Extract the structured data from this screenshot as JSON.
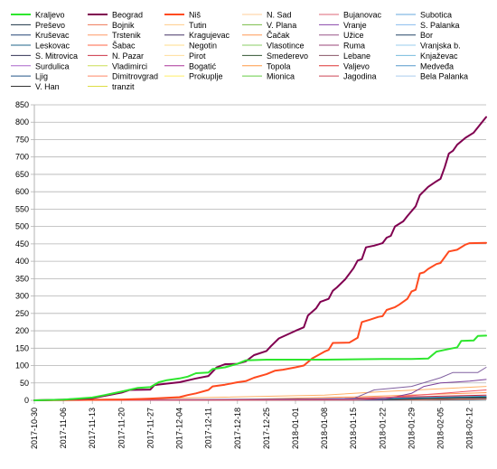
{
  "chart_data": {
    "type": "line",
    "title": "",
    "xlabel": "",
    "ylabel": "",
    "ylim": [
      0,
      850
    ],
    "yticks": [
      0,
      50,
      100,
      150,
      200,
      250,
      300,
      350,
      400,
      450,
      500,
      550,
      600,
      650,
      700,
      750,
      800,
      850
    ],
    "x_ticks": [
      "2017-10-30",
      "2017-11-06",
      "2017-11-13",
      "2017-11-20",
      "2017-11-27",
      "2017-12-04",
      "2017-12-11",
      "2017-12-18",
      "2017-12-25",
      "2018-01-01",
      "2018-01-08",
      "2018-01-15",
      "2018-01-22",
      "2018-01-29",
      "2018-02-05",
      "2018-02-12"
    ],
    "x_start": "2017-10-30",
    "x_end": "2018-02-16",
    "grid": true,
    "legend": "top",
    "series": [
      {
        "name": "Kraljevo",
        "color": "#2ee62e",
        "points": [
          [
            "2017-10-30",
            0
          ],
          [
            "2017-11-06",
            2
          ],
          [
            "2017-11-13",
            8
          ],
          [
            "2017-11-16",
            15
          ],
          [
            "2017-11-20",
            25
          ],
          [
            "2017-11-24",
            36
          ],
          [
            "2017-11-27",
            38
          ],
          [
            "2017-11-29",
            52
          ],
          [
            "2017-12-01",
            58
          ],
          [
            "2017-12-04",
            63
          ],
          [
            "2017-12-06",
            68
          ],
          [
            "2017-12-08",
            78
          ],
          [
            "2017-12-11",
            80
          ],
          [
            "2017-12-12",
            90
          ],
          [
            "2017-12-15",
            95
          ],
          [
            "2017-12-18",
            105
          ],
          [
            "2017-12-20",
            115
          ],
          [
            "2017-12-25",
            117
          ],
          [
            "2018-01-08",
            117
          ],
          [
            "2018-01-15",
            118
          ],
          [
            "2018-01-22",
            119
          ],
          [
            "2018-01-29",
            119
          ],
          [
            "2018-02-02",
            120
          ],
          [
            "2018-02-04",
            140
          ],
          [
            "2018-02-06",
            145
          ],
          [
            "2018-02-08",
            150
          ],
          [
            "2018-02-09",
            152
          ],
          [
            "2018-02-10",
            171
          ],
          [
            "2018-02-13",
            172
          ],
          [
            "2018-02-14",
            185
          ],
          [
            "2018-02-16",
            186
          ]
        ]
      },
      {
        "name": "Beograd",
        "color": "#800050",
        "points": [
          [
            "2017-10-30",
            0
          ],
          [
            "2017-11-06",
            2
          ],
          [
            "2017-11-13",
            6
          ],
          [
            "2017-11-20",
            22
          ],
          [
            "2017-11-22",
            30
          ],
          [
            "2017-11-27",
            31
          ],
          [
            "2017-11-28",
            44
          ],
          [
            "2017-12-01",
            48
          ],
          [
            "2017-12-04",
            52
          ],
          [
            "2017-12-08",
            63
          ],
          [
            "2017-12-11",
            70
          ],
          [
            "2017-12-13",
            95
          ],
          [
            "2017-12-15",
            104
          ],
          [
            "2017-12-18",
            105
          ],
          [
            "2017-12-20",
            112
          ],
          [
            "2017-12-22",
            130
          ],
          [
            "2017-12-25",
            142
          ],
          [
            "2017-12-26",
            155
          ],
          [
            "2017-12-28",
            178
          ],
          [
            "2018-01-01",
            200
          ],
          [
            "2018-01-03",
            210
          ],
          [
            "2018-01-04",
            244
          ],
          [
            "2018-01-06",
            265
          ],
          [
            "2018-01-07",
            283
          ],
          [
            "2018-01-09",
            292
          ],
          [
            "2018-01-10",
            315
          ],
          [
            "2018-01-11",
            325
          ],
          [
            "2018-01-13",
            348
          ],
          [
            "2018-01-15",
            380
          ],
          [
            "2018-01-16",
            402
          ],
          [
            "2018-01-17",
            406
          ],
          [
            "2018-01-18",
            440
          ],
          [
            "2018-01-20",
            445
          ],
          [
            "2018-01-22",
            452
          ],
          [
            "2018-01-23",
            468
          ],
          [
            "2018-01-24",
            473
          ],
          [
            "2018-01-25",
            500
          ],
          [
            "2018-01-27",
            515
          ],
          [
            "2018-01-28",
            530
          ],
          [
            "2018-01-30",
            558
          ],
          [
            "2018-01-31",
            590
          ],
          [
            "2018-02-02",
            614
          ],
          [
            "2018-02-04",
            630
          ],
          [
            "2018-02-05",
            637
          ],
          [
            "2018-02-06",
            670
          ],
          [
            "2018-02-07",
            710
          ],
          [
            "2018-02-08",
            718
          ],
          [
            "2018-02-09",
            735
          ],
          [
            "2018-02-11",
            755
          ],
          [
            "2018-02-13",
            770
          ],
          [
            "2018-02-15",
            800
          ],
          [
            "2018-02-16",
            815
          ]
        ]
      },
      {
        "name": "Niš",
        "color": "#ff4a1f",
        "points": [
          [
            "2017-10-30",
            0
          ],
          [
            "2017-11-20",
            2
          ],
          [
            "2017-11-27",
            5
          ],
          [
            "2017-12-04",
            9
          ],
          [
            "2017-12-06",
            15
          ],
          [
            "2017-12-08",
            20
          ],
          [
            "2017-12-11",
            30
          ],
          [
            "2017-12-12",
            40
          ],
          [
            "2017-12-15",
            45
          ],
          [
            "2017-12-18",
            52
          ],
          [
            "2017-12-20",
            55
          ],
          [
            "2017-12-22",
            65
          ],
          [
            "2017-12-25",
            75
          ],
          [
            "2017-12-27",
            85
          ],
          [
            "2017-12-29",
            88
          ],
          [
            "2018-01-01",
            95
          ],
          [
            "2018-01-03",
            100
          ],
          [
            "2018-01-05",
            120
          ],
          [
            "2018-01-08",
            140
          ],
          [
            "2018-01-09",
            145
          ],
          [
            "2018-01-10",
            165
          ],
          [
            "2018-01-14",
            166
          ],
          [
            "2018-01-16",
            180
          ],
          [
            "2018-01-17",
            225
          ],
          [
            "2018-01-19",
            232
          ],
          [
            "2018-01-21",
            240
          ],
          [
            "2018-01-22",
            242
          ],
          [
            "2018-01-23",
            260
          ],
          [
            "2018-01-25",
            268
          ],
          [
            "2018-01-26",
            275
          ],
          [
            "2018-01-28",
            292
          ],
          [
            "2018-01-29",
            313
          ],
          [
            "2018-01-30",
            318
          ],
          [
            "2018-01-31",
            365
          ],
          [
            "2018-02-01",
            368
          ],
          [
            "2018-02-02",
            378
          ],
          [
            "2018-02-04",
            392
          ],
          [
            "2018-02-05",
            395
          ],
          [
            "2018-02-07",
            428
          ],
          [
            "2018-02-09",
            433
          ],
          [
            "2018-02-11",
            448
          ],
          [
            "2018-02-12",
            452
          ],
          [
            "2018-02-16",
            453
          ]
        ]
      },
      {
        "name": "Jagodina",
        "color": "#ee5566",
        "points": [
          [
            "2017-10-30",
            0
          ],
          [
            "2018-01-15",
            1
          ],
          [
            "2018-02-16",
            30
          ]
        ]
      },
      {
        "name": "Vranje",
        "color": "#7a3f9a",
        "points": [
          [
            "2017-10-30",
            0
          ],
          [
            "2018-01-22",
            2
          ],
          [
            "2018-01-29",
            20
          ],
          [
            "2018-02-01",
            40
          ],
          [
            "2018-02-05",
            50
          ],
          [
            "2018-02-12",
            55
          ],
          [
            "2018-02-16",
            60
          ]
        ]
      },
      {
        "name": "Užice",
        "color": "#8060a0",
        "points": [
          [
            "2017-10-30",
            0
          ],
          [
            "2018-01-15",
            5
          ],
          [
            "2018-01-20",
            30
          ],
          [
            "2018-01-29",
            40
          ],
          [
            "2018-02-05",
            65
          ],
          [
            "2018-02-08",
            80
          ],
          [
            "2018-02-14",
            80
          ],
          [
            "2018-02-16",
            95
          ]
        ]
      },
      {
        "name": "N. Sad",
        "color": "#ffb066",
        "points": [
          [
            "2017-10-30",
            0
          ],
          [
            "2017-12-11",
            8
          ],
          [
            "2018-01-08",
            15
          ],
          [
            "2018-01-22",
            25
          ],
          [
            "2018-02-16",
            40
          ]
        ]
      },
      {
        "name": "Čačak",
        "color": "#ff9a55",
        "points": [
          [
            "2017-10-30",
            0
          ],
          [
            "2017-12-20",
            3
          ],
          [
            "2018-01-15",
            10
          ],
          [
            "2018-02-16",
            22
          ]
        ]
      },
      {
        "name": "Valjevo",
        "color": "#cc2233",
        "points": [
          [
            "2017-10-30",
            0
          ],
          [
            "2018-01-01",
            2
          ],
          [
            "2018-02-16",
            15
          ]
        ]
      },
      {
        "name": "Subotica",
        "color": "#4499dd",
        "points": [
          [
            "2017-10-30",
            0
          ],
          [
            "2018-01-08",
            2
          ],
          [
            "2018-02-16",
            12
          ]
        ]
      },
      {
        "name": "Smederevo",
        "color": "#224422",
        "points": [
          [
            "2017-10-30",
            0
          ],
          [
            "2018-01-15",
            3
          ],
          [
            "2018-02-16",
            10
          ]
        ]
      },
      {
        "name": "Leskovac",
        "color": "#225577",
        "points": [
          [
            "2017-10-30",
            0
          ],
          [
            "2018-01-22",
            2
          ],
          [
            "2018-02-16",
            8
          ]
        ]
      },
      {
        "name": "Kruševac",
        "color": "#2a4a7a",
        "points": [
          [
            "2017-10-30",
            0
          ],
          [
            "2018-01-22",
            4
          ],
          [
            "2018-02-16",
            7
          ]
        ]
      },
      {
        "name": "Šabac",
        "color": "#ff7744",
        "points": [
          [
            "2017-10-30",
            0
          ],
          [
            "2018-02-01",
            2
          ],
          [
            "2018-02-16",
            5
          ]
        ]
      },
      {
        "name": "S. Mitrovica",
        "color": "#334466",
        "points": [
          [
            "2017-10-30",
            0
          ],
          [
            "2018-02-05",
            1
          ],
          [
            "2018-02-16",
            3
          ]
        ]
      }
    ],
    "legend_entries": [
      {
        "name": "Kraljevo",
        "color": "#2ee62e",
        "width": 2
      },
      {
        "name": "Beograd",
        "color": "#800050",
        "width": 2
      },
      {
        "name": "Niš",
        "color": "#ff4a1f",
        "width": 2
      },
      {
        "name": "N. Sad",
        "color": "#ffcc99",
        "width": 1
      },
      {
        "name": "Bujanovac",
        "color": "#dd6677",
        "width": 1
      },
      {
        "name": "Subotica",
        "color": "#66aadd",
        "width": 1
      },
      {
        "name": "Preševo",
        "color": "#1a3344",
        "width": 1
      },
      {
        "name": "Bojnik",
        "color": "#ee7755",
        "width": 1
      },
      {
        "name": "Tutin",
        "color": "#ffcc88",
        "width": 1
      },
      {
        "name": "V. Plana",
        "color": "#77bb44",
        "width": 1
      },
      {
        "name": "Vranje",
        "color": "#8844aa",
        "width": 1
      },
      {
        "name": "S. Palanka",
        "color": "#88bbee",
        "width": 1
      },
      {
        "name": "Kruševac",
        "color": "#224477",
        "width": 1
      },
      {
        "name": "Trstenik",
        "color": "#ff9966",
        "width": 1
      },
      {
        "name": "Kragujevac",
        "color": "#443366",
        "width": 1
      },
      {
        "name": "Čačak",
        "color": "#ff9955",
        "width": 1
      },
      {
        "name": "Užice",
        "color": "#995588",
        "width": 1
      },
      {
        "name": "Bor",
        "color": "#224466",
        "width": 1
      },
      {
        "name": "Leskovac",
        "color": "#226688",
        "width": 1
      },
      {
        "name": "Šabac",
        "color": "#ff6644",
        "width": 1
      },
      {
        "name": "Negotin",
        "color": "#ffdd88",
        "width": 1
      },
      {
        "name": "Vlasotince",
        "color": "#88cc66",
        "width": 1
      },
      {
        "name": "Ruma",
        "color": "#994477",
        "width": 1
      },
      {
        "name": "Vranjska b.",
        "color": "#99ccee",
        "width": 1
      },
      {
        "name": "S. Mitrovica",
        "color": "#333355",
        "width": 1
      },
      {
        "name": "N. Pazar",
        "color": "#cc3344",
        "width": 1
      },
      {
        "name": "Pirot",
        "color": "#ffdd99",
        "width": 1
      },
      {
        "name": "Smederevo",
        "color": "#335533",
        "width": 1
      },
      {
        "name": "Lebane",
        "color": "#885566",
        "width": 1
      },
      {
        "name": "Knjaževac",
        "color": "#77bbdd",
        "width": 1
      },
      {
        "name": "Surdulica",
        "color": "#aa66cc",
        "width": 1
      },
      {
        "name": "Vladimirci",
        "color": "#ccdd55",
        "width": 1
      },
      {
        "name": "Bogatić",
        "color": "#aa3399",
        "width": 1
      },
      {
        "name": "Topola",
        "color": "#ff9944",
        "width": 1
      },
      {
        "name": "Valjevo",
        "color": "#dd3333",
        "width": 1
      },
      {
        "name": "Medveđa",
        "color": "#5599cc",
        "width": 1
      },
      {
        "name": "Ljig",
        "color": "#225588",
        "width": 1
      },
      {
        "name": "Dimitrovgrad",
        "color": "#ff8866",
        "width": 1
      },
      {
        "name": "Prokuplje",
        "color": "#ffee66",
        "width": 1
      },
      {
        "name": "Mionica",
        "color": "#66cc44",
        "width": 1
      },
      {
        "name": "Jagodina",
        "color": "#cc4455",
        "width": 1
      },
      {
        "name": "Bela Palanka",
        "color": "#aaccee",
        "width": 1
      },
      {
        "name": "V. Han",
        "color": "#333333",
        "width": 1
      },
      {
        "name": "tranzit",
        "color": "#dddd44",
        "width": 1
      }
    ]
  }
}
